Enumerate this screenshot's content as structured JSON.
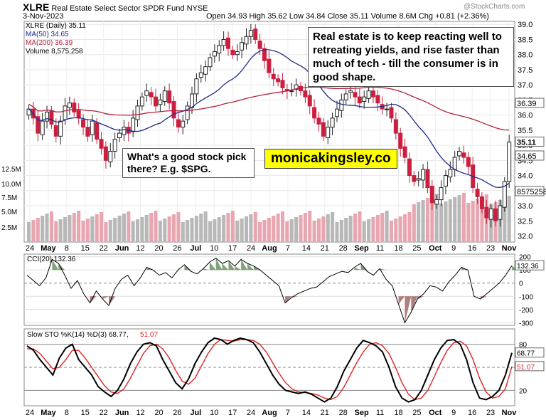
{
  "header": {
    "symbol": "XLRE",
    "name": "Real Estate Select Sector SPDR Fund",
    "exchange": "NYSE",
    "date": "3-Nov-2023",
    "ohlc": "Open 34.93  High 35.62  Low 34.84  Close 35.11  Volume 8.6M  Chg +0.81 (+2.36%)",
    "watermark": "@StockCharts.com"
  },
  "legend": {
    "main": "XLRE (Daily) 35.11",
    "ma50": "MA(50) 34.65",
    "ma200": "MA(200) 36.39",
    "volume": "Volume 8,575,258"
  },
  "annotations": {
    "top": "Real estate is to keep reacting well to retreating yields, and rise faster than much of tech - till the consumer is in good shape.",
    "pick": "What's a good stock pick there? E.g. $SPG.",
    "brand": "monicakingsley.co"
  },
  "colors": {
    "up": "#222222",
    "down": "#cc1f3f",
    "ma50": "#1f2a8a",
    "ma200": "#b3203b",
    "volUp": "#b8b8b8",
    "volDown": "#e8a7b0",
    "cciFill": "#4e7a43",
    "cciNeg": "#8a4a47",
    "stoD": "#dd2222"
  },
  "chart_data": [
    {
      "type": "candlestick",
      "title": "XLRE (Daily)",
      "yaxis_ticks": [
        "32.0",
        "32.5",
        "33.0",
        "33.5",
        "34.0",
        "34.5",
        "35.0",
        "35.5",
        "36.0",
        "36.5",
        "37.0",
        "37.5",
        "38.0",
        "38.5",
        "39.0"
      ],
      "ylim": [
        31.8,
        39.1
      ],
      "x_ticks": [
        "24",
        "May",
        "8",
        "15",
        "22",
        "Jun",
        "12",
        "20",
        "26",
        "Jul",
        "10",
        "17",
        "24",
        "Aug",
        "7",
        "14",
        "21",
        "28",
        "Sep",
        "11",
        "18",
        "25",
        "Oct",
        "9",
        "16",
        "23",
        "Nov"
      ],
      "close_path": [
        36.2,
        35.9,
        35.4,
        35.8,
        36.1,
        35.7,
        35.3,
        35.8,
        36.3,
        36.4,
        36.1,
        35.9,
        35.6,
        35.3,
        35.8,
        35.2,
        34.9,
        34.5,
        34.8,
        35.2,
        35.4,
        35.6,
        35.4,
        35.9,
        36.3,
        36.6,
        36.8,
        36.6,
        36.3,
        36.5,
        36.8,
        36.4,
        35.9,
        35.6,
        35.8,
        36.3,
        36.7,
        37.2,
        37.4,
        37.6,
        37.9,
        38.1,
        38.3,
        38.5,
        38.2,
        38.0,
        38.1,
        38.4,
        38.6,
        38.8,
        38.5,
        38.2,
        37.8,
        37.4,
        37.2,
        37.1,
        36.9,
        36.8,
        36.8,
        37.0,
        36.8,
        36.6,
        36.3,
        35.9,
        35.7,
        35.3,
        35.6,
        35.9,
        36.2,
        36.5,
        36.7,
        36.8,
        36.6,
        36.4,
        36.6,
        36.8,
        36.6,
        36.4,
        36.2,
        36.2,
        35.9,
        35.4,
        34.9,
        34.6,
        34.0,
        33.8,
        33.9,
        34.2,
        33.6,
        33.1,
        33.2,
        33.6,
        34.0,
        34.2,
        34.6,
        34.8,
        34.6,
        34.3,
        33.6,
        33.3,
        32.9,
        32.6,
        32.9,
        32.5,
        33.0,
        33.8,
        35.11
      ],
      "volume_ticks": [
        "2.5M",
        "5.0M",
        "7.5M",
        "10.0M",
        "12.5M"
      ],
      "ma50_label": "34.65",
      "ma200_label": "36.39",
      "last_price_label": "35.11",
      "last_volume_label": "8575258",
      "ma50": "MA(50) 34.65",
      "ma200": "MA(200) 36.39",
      "volume_last": "Volume 8,575,258"
    },
    {
      "type": "line",
      "title": "CCI(20) 132.36",
      "yaxis_ticks": [
        "-300",
        "-200",
        "-100",
        "0",
        "100",
        "200"
      ],
      "ylim": [
        -320,
        220
      ],
      "last_label": "132.36",
      "values": [
        60,
        20,
        -20,
        40,
        180,
        150,
        60,
        -40,
        20,
        -80,
        -150,
        -60,
        -120,
        -170,
        -40,
        30,
        60,
        -20,
        40,
        120,
        100,
        60,
        80,
        40,
        100,
        140,
        90,
        70,
        110,
        160,
        190,
        150,
        170,
        130,
        180,
        150,
        130,
        100,
        60,
        20,
        -20,
        -150,
        -110,
        -80,
        -60,
        -40,
        -30,
        10,
        50,
        70,
        90,
        80,
        120,
        150,
        90,
        60,
        110,
        30,
        -20,
        -160,
        -300,
        -220,
        -120,
        -80,
        -20,
        -30,
        -60,
        10,
        60,
        120,
        100,
        -100,
        -120,
        -80,
        -40,
        0,
        60,
        132.36
      ]
    },
    {
      "type": "line",
      "title": "Slow STO %K(14) %D(3) 68.77, 51.07",
      "yaxis_ticks": [
        "20",
        "50",
        "80"
      ],
      "ylim": [
        0,
        100
      ],
      "last_k_label": "68.77",
      "last_d_label": "51.07",
      "sto_label_k": "Slow STO %K(14) %D(3) 68.77,",
      "sto_label_d": "51.07",
      "k_values": [
        78,
        72,
        60,
        50,
        40,
        62,
        75,
        80,
        60,
        50,
        40,
        25,
        18,
        12,
        20,
        35,
        55,
        70,
        80,
        82,
        78,
        60,
        45,
        30,
        22,
        35,
        55,
        70,
        82,
        88,
        86,
        80,
        85,
        88,
        86,
        82,
        70,
        55,
        40,
        28,
        20,
        18,
        16,
        18,
        15,
        10,
        5,
        10,
        25,
        45,
        60,
        75,
        85,
        82,
        78,
        70,
        50,
        25,
        10,
        5,
        8,
        20,
        40,
        60,
        75,
        85,
        86,
        80,
        60,
        30,
        10,
        8,
        12,
        20,
        40,
        68.77
      ],
      "d_values": [
        74,
        74,
        68,
        58,
        48,
        50,
        60,
        72,
        72,
        62,
        50,
        38,
        26,
        18,
        16,
        22,
        36,
        52,
        68,
        78,
        80,
        74,
        62,
        46,
        32,
        28,
        36,
        52,
        68,
        80,
        86,
        85,
        84,
        86,
        86,
        85,
        80,
        70,
        56,
        42,
        30,
        22,
        18,
        17,
        16,
        14,
        10,
        8,
        12,
        24,
        40,
        56,
        70,
        80,
        82,
        78,
        68,
        50,
        30,
        15,
        8,
        10,
        20,
        38,
        56,
        72,
        82,
        84,
        78,
        60,
        36,
        18,
        10,
        12,
        22,
        51.07
      ]
    }
  ]
}
